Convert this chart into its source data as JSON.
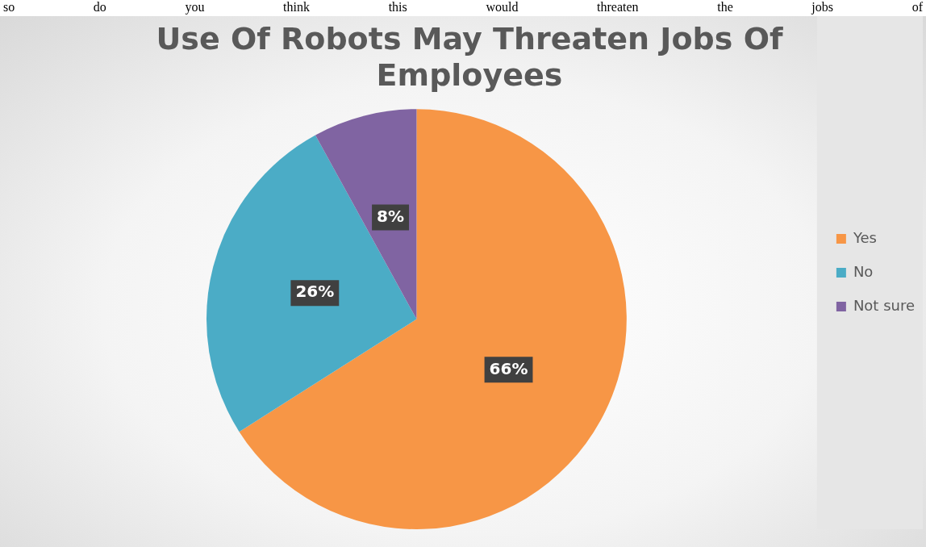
{
  "chart_data": {
    "type": "pie",
    "title": "Use Of Robots May Threaten Jobs Of Employees",
    "annotations": [
      "so do you think this would threaten the jobs of"
    ],
    "categories": [
      "Yes",
      "No",
      "Not sure"
    ],
    "values": [
      66,
      26,
      8
    ],
    "value_labels": [
      "66%",
      "26%",
      "8%"
    ],
    "colors": [
      "#f79646",
      "#4bacc6",
      "#8064a2"
    ],
    "legend": "right"
  }
}
